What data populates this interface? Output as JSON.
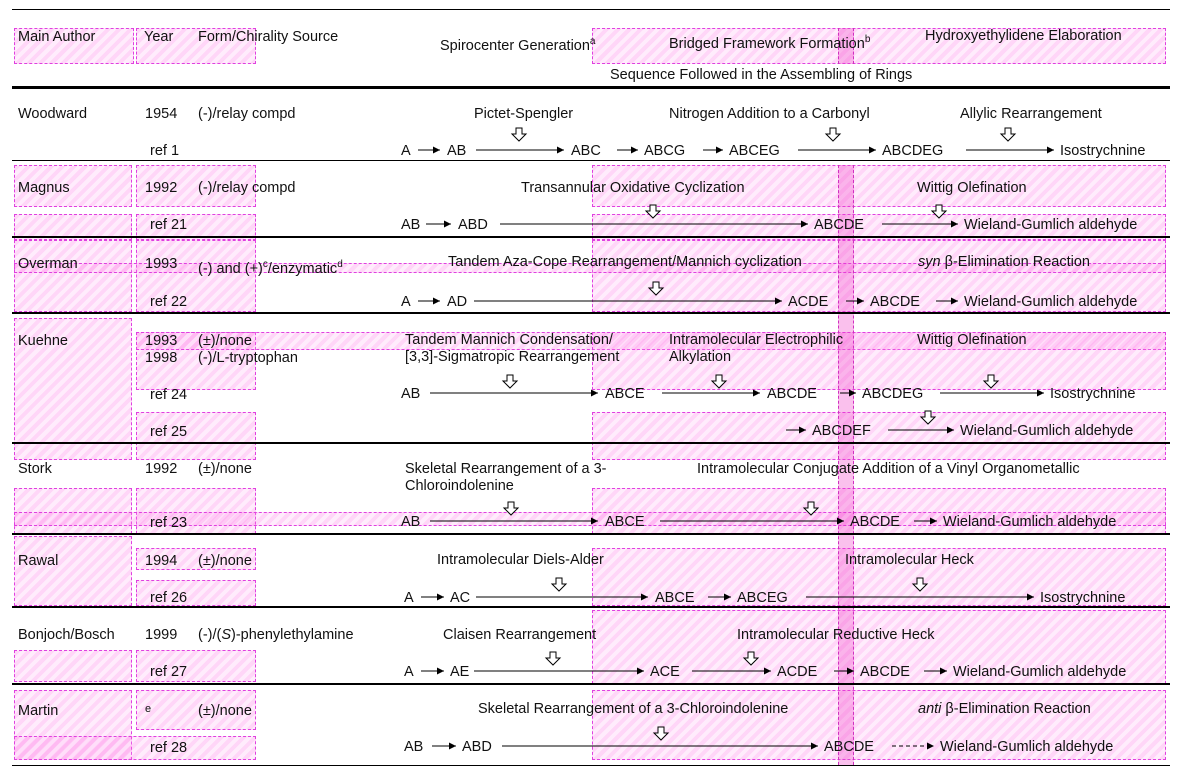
{
  "headers": {
    "author": "Main Author",
    "year": "Year",
    "form": "Form/Chirality Source",
    "spiro": "Spirocenter Generation",
    "spiro_sup": "a",
    "bridged": "Bridged Framework Formation",
    "bridged_sup": "b",
    "hydroxy": "Hydroxyethylidene Elaboration",
    "sequence": "Sequence Followed in the Assembling of Rings"
  },
  "rows": {
    "woodward": {
      "author": "Woodward",
      "year": "1954",
      "form": "(-)/relay compd",
      "ref": "ref 1",
      "step1": "Pictet-Spengler",
      "step2": "Nitrogen Addition to a Carbonyl",
      "step3": "Allylic Rearrangement",
      "seq": [
        "A",
        "AB",
        "ABC",
        "ABCG",
        "ABCEG",
        "ABCDEG",
        "Isostrychnine"
      ]
    },
    "magnus": {
      "author": "Magnus",
      "year": "1992",
      "form": "(-)/relay compd",
      "ref": "ref 21",
      "step1": "Transannular Oxidative Cyclization",
      "step2": "Wittig Olefination",
      "seq": [
        "AB",
        "ABD",
        "ABCDE",
        "Wieland-Gumlich aldehyde"
      ]
    },
    "overman": {
      "author": "Overman",
      "year": "1993",
      "form_a": "(-) and (+)",
      "form_sup1": "c",
      "form_b": "/enzymatic",
      "form_sup2": "d",
      "ref": "ref 22",
      "step1": "Tandem Aza-Cope Rearrangement/Mannich cyclization",
      "step2_italic": "syn",
      "step2": " β-Elimination Reaction",
      "seq": [
        "A",
        "AD",
        "ACDE",
        "ABCDE",
        "Wieland-Gumlich aldehyde"
      ]
    },
    "kuehne": {
      "author": "Kuehne",
      "year1": "1993",
      "form1": "(±)/none",
      "year2": "1998",
      "form2": "(-)/L-tryptophan",
      "step1a": "Tandem Mannich Condensation/",
      "step1b": "[3,3]-Sigmatropic Rearrangement",
      "step2a": "Intramolecular Electrophilic",
      "step2b": "Alkylation",
      "step3": "Wittig Olefination",
      "ref24": "ref 24",
      "seq24": [
        "AB",
        "ABCE",
        "ABCDE",
        "ABCDEG",
        "Isostrychnine"
      ],
      "ref25": "ref 25",
      "seq25": [
        "ABCDEF",
        "Wieland-Gumlich aldehyde"
      ]
    },
    "stork": {
      "author": "Stork",
      "year": "1992",
      "form": "(±)/none",
      "ref": "ref 23",
      "step1a": "Skeletal Rearrangement of a 3-",
      "step1b": "Chloroindolenine",
      "step2": "Intramolecular Conjugate Addition of a Vinyl Organometallic",
      "seq": [
        "AB",
        "ABCE",
        "ABCDE",
        "Wieland-Gumlich aldehyde"
      ]
    },
    "rawal": {
      "author": "Rawal",
      "year": "1994",
      "form": "(±)/none",
      "ref": "ref 26",
      "step1": "Intramolecular Diels-Alder",
      "step2": "Intramolecular Heck",
      "seq": [
        "A",
        "AC",
        "ABCE",
        "ABCEG",
        "Isostrychnine"
      ]
    },
    "bonjoch": {
      "author": "Bonjoch/Bosch",
      "year": "1999",
      "form_a": "(-)/(",
      "form_italic": "S",
      "form_b": ")-phenylethylamine",
      "ref": "ref 27",
      "step1": "Claisen Rearrangement",
      "step2": "Intramolecular Reductive Heck",
      "seq": [
        "A",
        "AE",
        "ACE",
        "ACDE",
        "ABCDE",
        "Wieland-Gumlich aldehyde"
      ]
    },
    "martin": {
      "author": "Martin",
      "year": "e",
      "form": "(±)/none",
      "ref": "ref 28",
      "step1": "Skeletal Rearrangement of a 3-Chloroindolenine",
      "step2_italic": "anti",
      "step2": " β-Elimination Reaction",
      "seq": [
        "AB",
        "ABD",
        "ABCDE",
        "Wieland-Gumlich aldehyde"
      ]
    }
  },
  "colors": {
    "highlight": "#ff78e6",
    "strip": "#f03cc8",
    "rule": "#000000"
  }
}
